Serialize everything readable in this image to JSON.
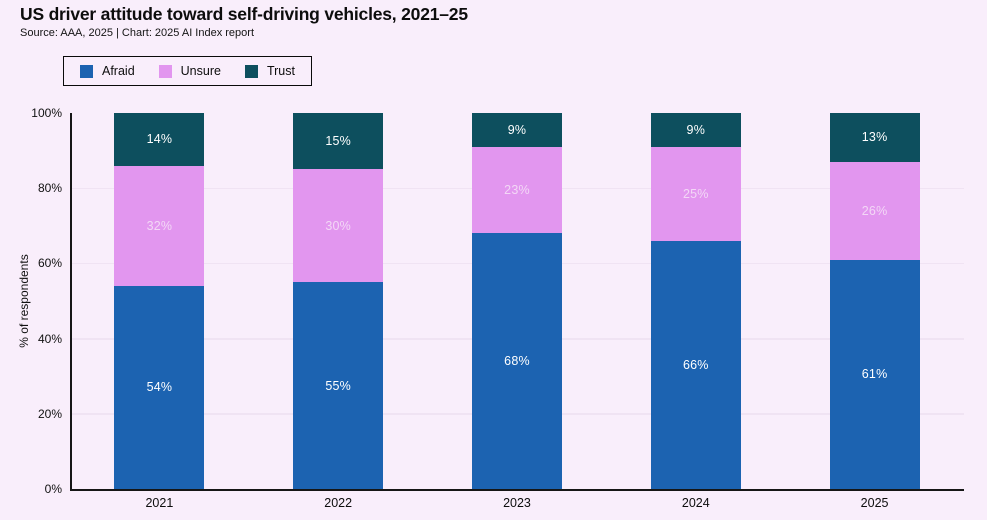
{
  "chart_data": {
    "type": "bar",
    "stacked": true,
    "title": "US driver attitude toward self-driving vehicles, 2021–25",
    "source": "Source: AAA, 2025 | Chart: 2025 AI Index report",
    "ylabel": "% of respondents",
    "categories": [
      "2021",
      "2022",
      "2023",
      "2024",
      "2025"
    ],
    "series": [
      {
        "name": "Afraid",
        "color": "#1c63b1",
        "label_color": "#ffffff",
        "values": [
          54,
          55,
          68,
          66,
          61
        ]
      },
      {
        "name": "Unsure",
        "color": "#e296ef",
        "label_color": "#f3d7f6",
        "values": [
          32,
          30,
          23,
          25,
          26
        ]
      },
      {
        "name": "Trust",
        "color": "#0d4f5e",
        "label_color": "#ffffff",
        "values": [
          14,
          15,
          9,
          9,
          13
        ]
      }
    ],
    "value_suffix": "%",
    "ylim": [
      0,
      100
    ],
    "yticks": [
      {
        "value": 0,
        "label": "0%"
      },
      {
        "value": 20,
        "label": "20%"
      },
      {
        "value": 40,
        "label": "40%"
      },
      {
        "value": 60,
        "label": "60%"
      },
      {
        "value": 80,
        "label": "80%"
      },
      {
        "value": 100,
        "label": "100%"
      }
    ],
    "gridline_values": [
      20,
      40,
      60,
      80
    ],
    "grid": true,
    "legend_position": "top-left"
  },
  "theme": {
    "background": "#f9eefb",
    "axis_color": "#161616",
    "text_color": "#111111",
    "gridline_color": "#f0e3f3"
  }
}
